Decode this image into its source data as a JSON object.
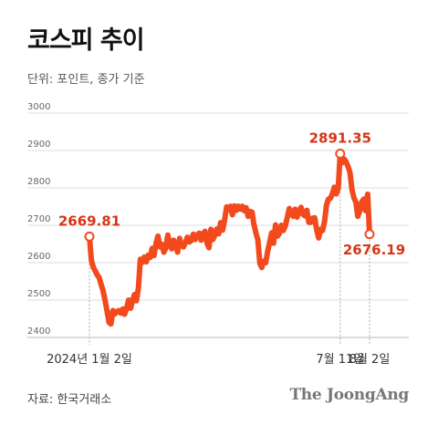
{
  "chart_data": {
    "type": "line",
    "title": "코스피 추이",
    "subtitle": "단위: 포인트, 종가 기준",
    "source": "자료: 한국거래소",
    "logo": "The JoongAng",
    "ylim": [
      2400,
      3000
    ],
    "yticks": [
      "3000",
      "2900",
      "2800",
      "2700",
      "2600",
      "2500",
      "2400"
    ],
    "ytick_values": [
      3000,
      2900,
      2800,
      2700,
      2600,
      2500,
      2400
    ],
    "xtick_labels": [
      {
        "label": "2024년 1월 2일",
        "index": 0
      },
      {
        "label": "7월 11일",
        "index": 128
      },
      {
        "label": "8월 2일",
        "index": 143
      }
    ],
    "line_color": "#f24a1d",
    "annotations": [
      {
        "label": "2669.81",
        "index": 0,
        "value": 2669.81
      },
      {
        "label": "2891.35",
        "index": 128,
        "value": 2891.35
      },
      {
        "label": "2676.19",
        "index": 143,
        "value": 2676.19
      }
    ],
    "series": [
      {
        "values": [
          2669.81,
          2607,
          2587,
          2578,
          2567,
          2560,
          2541,
          2525,
          2498,
          2471,
          2440,
          2436,
          2472,
          2463,
          2469,
          2472,
          2465,
          2476,
          2462,
          2478,
          2500,
          2478,
          2498,
          2515,
          2498,
          2533,
          2609,
          2601,
          2615,
          2602,
          2620,
          2614,
          2638,
          2619,
          2652,
          2671,
          2642,
          2649,
          2628,
          2639,
          2674,
          2649,
          2637,
          2660,
          2646,
          2628,
          2665,
          2647,
          2642,
          2654,
          2668,
          2655,
          2659,
          2676,
          2662,
          2674,
          2679,
          2660,
          2678,
          2684,
          2653,
          2640,
          2689,
          2662,
          2673,
          2690,
          2677,
          2707,
          2687,
          2713,
          2749,
          2742,
          2751,
          2728,
          2752,
          2740,
          2751,
          2743,
          2751,
          2739,
          2747,
          2724,
          2737,
          2735,
          2702,
          2679,
          2661,
          2598,
          2587,
          2604,
          2600,
          2631,
          2654,
          2680,
          2652,
          2701,
          2671,
          2678,
          2700,
          2686,
          2698,
          2721,
          2745,
          2734,
          2724,
          2743,
          2722,
          2737,
          2748,
          2730,
          2725,
          2740,
          2708,
          2708,
          2719,
          2720,
          2688,
          2666,
          2689,
          2686,
          2709,
          2754,
          2770,
          2772,
          2784,
          2802,
          2784,
          2799,
          2891.35,
          2867,
          2877,
          2870,
          2857,
          2842,
          2796,
          2774,
          2762,
          2724,
          2738,
          2762,
          2770,
          2739,
          2783,
          2676.19
        ]
      }
    ]
  }
}
